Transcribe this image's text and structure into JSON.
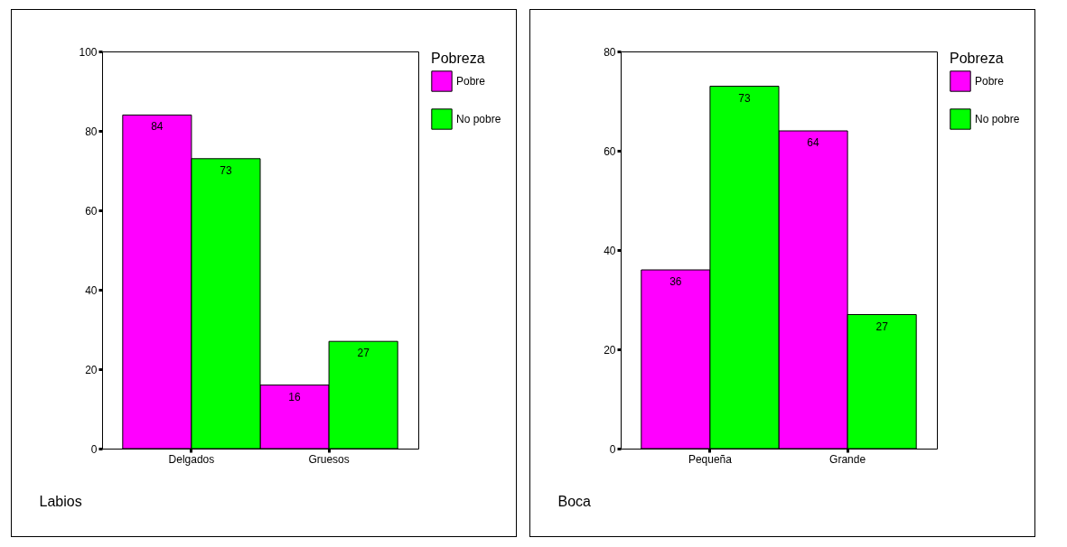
{
  "chart_data": [
    {
      "type": "bar",
      "xlabel": "Labios",
      "legend_title": "Pobreza",
      "legend": "right",
      "grid": false,
      "data_labels": true,
      "categories": [
        "Delgados",
        "Gruesos"
      ],
      "ylim": [
        0,
        100
      ],
      "yticks": [
        0,
        20,
        40,
        60,
        80,
        100
      ],
      "series": [
        {
          "name": "Pobre",
          "color": "#ff00ff",
          "values": [
            84,
            16
          ]
        },
        {
          "name": "No pobre",
          "color": "#00ff00",
          "values": [
            73,
            27
          ]
        }
      ]
    },
    {
      "type": "bar",
      "xlabel": "Boca",
      "legend_title": "Pobreza",
      "legend": "right",
      "grid": false,
      "data_labels": true,
      "categories": [
        "Pequeña",
        "Grande"
      ],
      "ylim": [
        0,
        80
      ],
      "yticks": [
        0,
        20,
        40,
        60,
        80
      ],
      "series": [
        {
          "name": "Pobre",
          "color": "#ff00ff",
          "values": [
            36,
            64
          ]
        },
        {
          "name": "No pobre",
          "color": "#00ff00",
          "values": [
            73,
            27
          ]
        }
      ]
    }
  ]
}
